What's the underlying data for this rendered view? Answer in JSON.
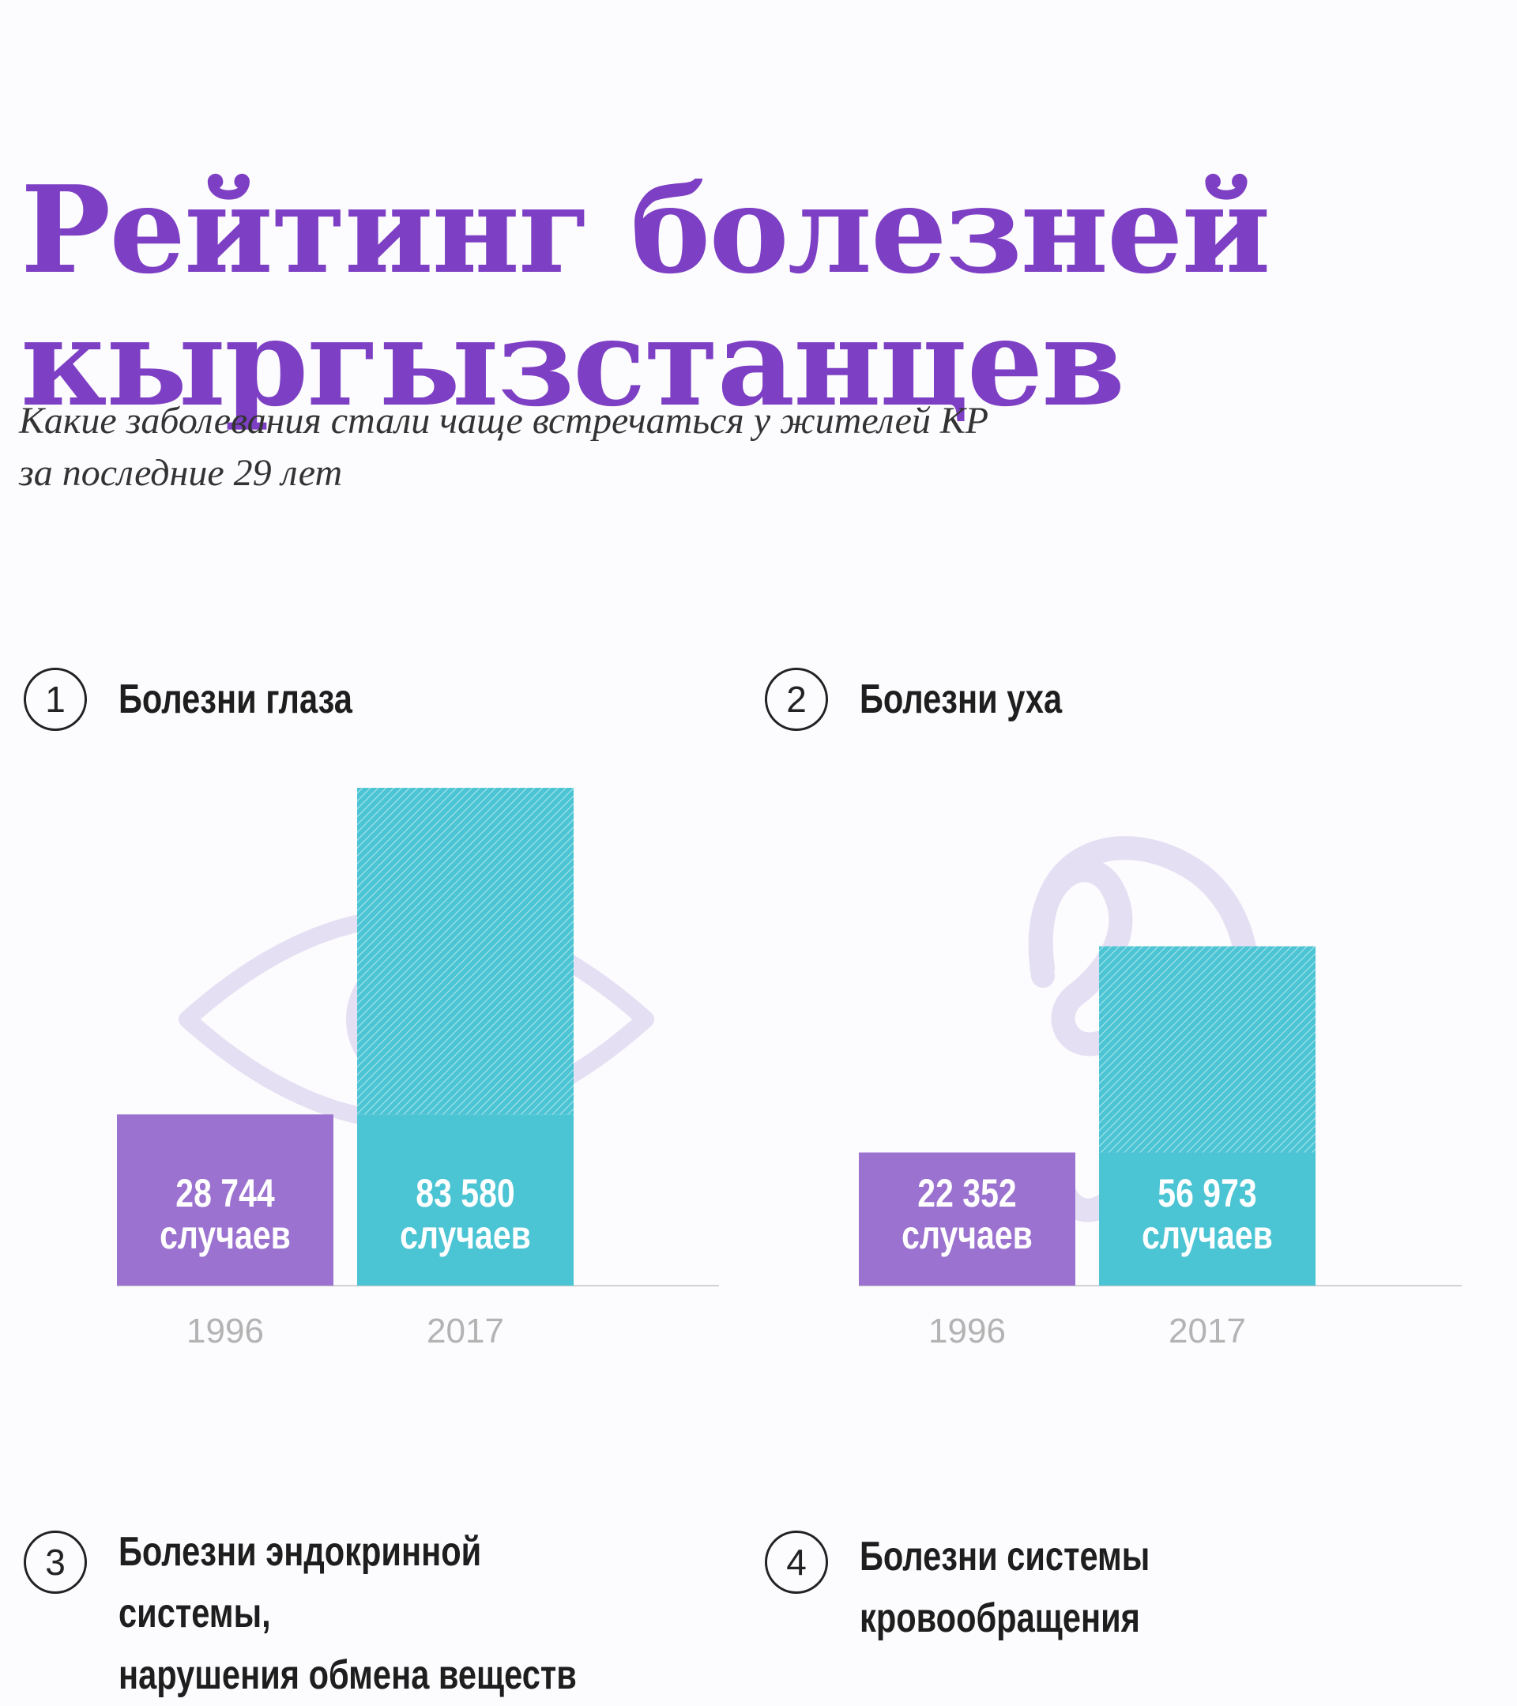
{
  "title": [
    "Рейтинг болезней",
    "кыргызстанцев"
  ],
  "subtitle": [
    "Какие заболевания стали чаще встречаться у жителей КР",
    "за последние 29 лет"
  ],
  "colors": {
    "accent": "#7d3fc4",
    "bar_1996": "#9b72cf",
    "bar_2017": "#4bc4d4",
    "icon": "#e5dff4"
  },
  "charts": [
    {
      "num": "1",
      "title": [
        "Болезни глаза"
      ],
      "icon": "eye-icon"
    },
    {
      "num": "2",
      "title": [
        "Болезни уха"
      ],
      "icon": "ear-icon"
    },
    {
      "num": "3",
      "title": [
        "Болезни эндокринной системы,",
        "нарушения обмена веществ"
      ]
    },
    {
      "num": "4",
      "title": [
        "Болезни системы",
        "кровообращения"
      ]
    }
  ],
  "chart_data": [
    {
      "type": "bar",
      "title": "Болезни глаза",
      "categories": [
        "1996",
        "2017"
      ],
      "values": [
        28744,
        83580
      ],
      "labels": [
        [
          "28 744",
          "случаев"
        ],
        [
          "83 580",
          "случаев"
        ]
      ],
      "highlight": "2017 bar hatched above the 1996 level"
    },
    {
      "type": "bar",
      "title": "Болезни уха",
      "categories": [
        "1996",
        "2017"
      ],
      "values": [
        22352,
        56973
      ],
      "labels": [
        [
          "22 352",
          "случаев"
        ],
        [
          "56 973",
          "случаев"
        ]
      ],
      "highlight": "2017 bar hatched above the 1996 level"
    }
  ]
}
